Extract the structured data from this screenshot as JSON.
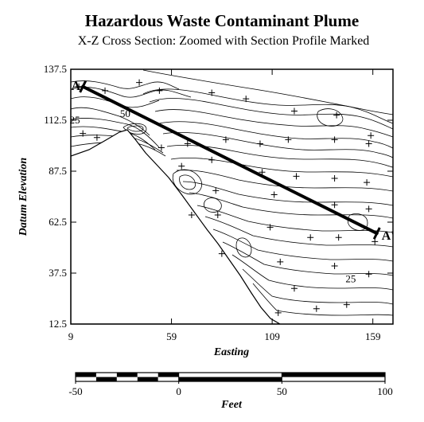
{
  "chart_data": {
    "type": "contour",
    "title": "Hazardous Waste Contaminant Plume",
    "subtitle": "X-Z Cross Section:  Zoomed with Section Profile Marked",
    "xlabel": "Easting",
    "ylabel": "Datum Elevation",
    "xlim": [
      9,
      169
    ],
    "ylim": [
      12.5,
      137.5
    ],
    "x_ticks": [
      9,
      59,
      109,
      159
    ],
    "y_ticks": [
      12.5,
      37.5,
      62.5,
      87.5,
      112.5,
      137.5
    ],
    "x_tick_labels": [
      "9",
      "59",
      "109",
      "159"
    ],
    "y_tick_labels": [
      "12.5",
      "37.5",
      "62.5",
      "87.5",
      "112.5",
      "137.5"
    ],
    "contour_labels": [
      {
        "text": "50",
        "x": 36,
        "y": 114
      },
      {
        "text": "25",
        "x": 11,
        "y": 111
      },
      {
        "text": "25",
        "x": 148,
        "y": 33
      }
    ],
    "section_profile": {
      "start": {
        "label": "A",
        "x": 15,
        "y": 129
      },
      "end": {
        "label": "A'",
        "x": 161,
        "y": 57
      }
    },
    "sample_points": [
      [
        13,
        129
      ],
      [
        26,
        127
      ],
      [
        43,
        131
      ],
      [
        53,
        127
      ],
      [
        79,
        126
      ],
      [
        96,
        123
      ],
      [
        120,
        117
      ],
      [
        141,
        115
      ],
      [
        158,
        105
      ],
      [
        15,
        106
      ],
      [
        22,
        104
      ],
      [
        54,
        99
      ],
      [
        67,
        101
      ],
      [
        86,
        103
      ],
      [
        103,
        101
      ],
      [
        117,
        103
      ],
      [
        140,
        103
      ],
      [
        157,
        101
      ],
      [
        64,
        90
      ],
      [
        79,
        93
      ],
      [
        104,
        87
      ],
      [
        121,
        85
      ],
      [
        140,
        84
      ],
      [
        156,
        82
      ],
      [
        81,
        78
      ],
      [
        110,
        76
      ],
      [
        140,
        71
      ],
      [
        157,
        69
      ],
      [
        69,
        66
      ],
      [
        82,
        66
      ],
      [
        108,
        60
      ],
      [
        128,
        55
      ],
      [
        142,
        55
      ],
      [
        160,
        53
      ],
      [
        84,
        47
      ],
      [
        113,
        43
      ],
      [
        140,
        41
      ],
      [
        157,
        37
      ],
      [
        120,
        30
      ],
      [
        146,
        22
      ],
      [
        112,
        18
      ],
      [
        131,
        20
      ]
    ],
    "scale_bar": {
      "unit": "Feet",
      "tick_labels": [
        "-50",
        "0",
        "50",
        "100"
      ],
      "ticks": [
        -50,
        0,
        50,
        100
      ],
      "range": [
        -50,
        100
      ]
    }
  }
}
